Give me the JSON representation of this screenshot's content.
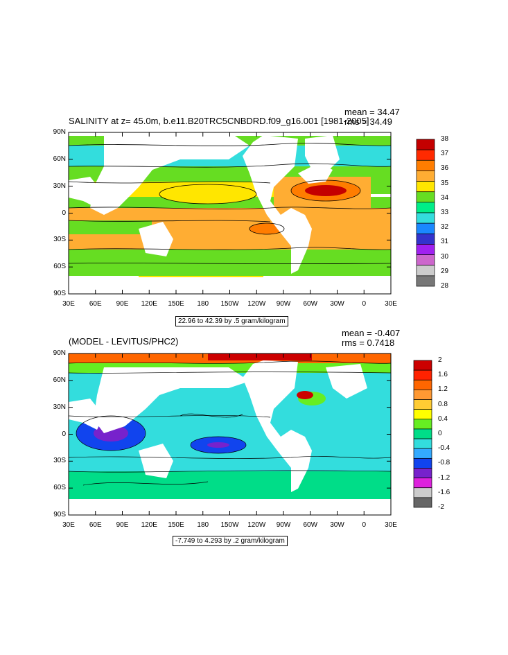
{
  "panel1": {
    "title": "SALINITY at z=  45.0m, b.e11.B20TRC5CNBDRD.f09_g16.001 [1981-2005]",
    "mean": "mean = 34.47",
    "rms": "rms = 34.49",
    "range_label": "22.96 to 42.39 by .5 gram/kilogram",
    "colorbar": {
      "labels": [
        "38",
        "37",
        "36",
        "35",
        "34",
        "33",
        "32",
        "31",
        "30",
        "29",
        "28"
      ],
      "colors": [
        "#c40000",
        "#ff2a00",
        "#ff7d00",
        "#ffad33",
        "#ffe600",
        "#66dd22",
        "#00ee88",
        "#33dddd",
        "#1a88ff",
        "#3333cc",
        "#a020f0",
        "#cc66cc",
        "#cccccc",
        "#777777"
      ]
    }
  },
  "panel2": {
    "title": "(MODEL - LEVITUS/PHC2)",
    "mean": "mean = -0.407",
    "rms": "rms = 0.7418",
    "range_label": "-7.749 to 4.293 by .2 gram/kilogram",
    "colorbar": {
      "labels": [
        "2",
        "1.6",
        "1.2",
        "0.8",
        "0.4",
        "0",
        "-0.4",
        "-0.8",
        "-1.2",
        "-1.6",
        "-2"
      ],
      "colors": [
        "#cc0000",
        "#ff2200",
        "#ff6600",
        "#ff9933",
        "#ffcc33",
        "#ffff00",
        "#66ee22",
        "#00dd88",
        "#33dddd",
        "#33aaff",
        "#1144ee",
        "#7722cc",
        "#dd22dd",
        "#cccccc",
        "#666666"
      ]
    }
  },
  "axes": {
    "lat_labels": [
      "90N",
      "60N",
      "30N",
      "0",
      "30S",
      "60S",
      "90S"
    ],
    "lon_labels": [
      "30E",
      "60E",
      "90E",
      "120E",
      "150E",
      "180",
      "150W",
      "120W",
      "90W",
      "60W",
      "30W",
      "0",
      "30E"
    ]
  },
  "colors": {
    "land": "#ffffff",
    "salinity_base": "#ffe600",
    "diff_base": "#33dddd"
  }
}
